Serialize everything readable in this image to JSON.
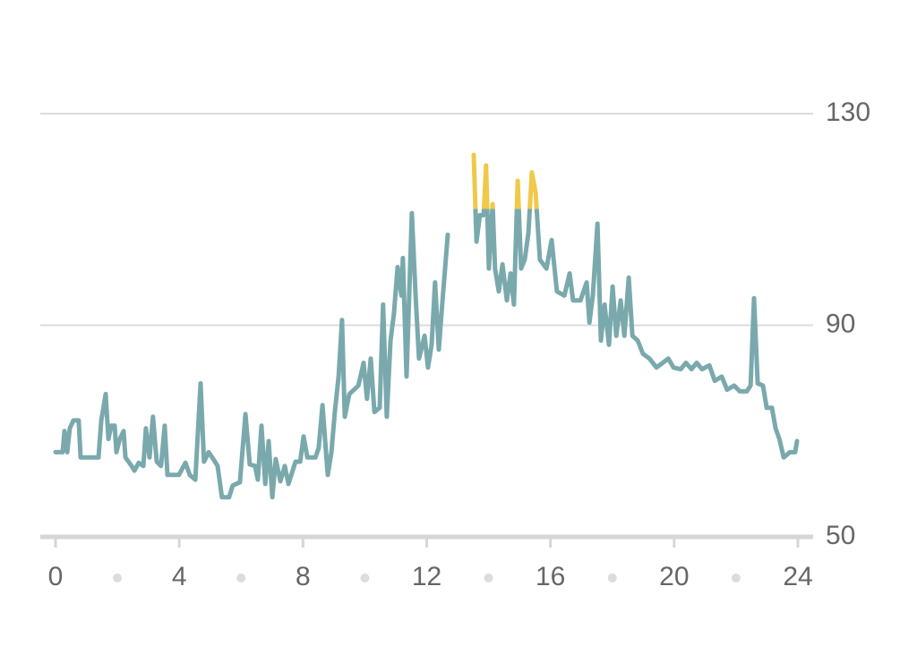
{
  "chart_data": {
    "type": "line",
    "x": [
      0,
      0.23,
      0.29,
      0.38,
      0.46,
      0.58,
      0.75,
      0.81,
      1.39,
      1.48,
      1.62,
      1.71,
      1.8,
      1.91,
      1.97,
      2.08,
      2.2,
      2.26,
      2.46,
      2.55,
      2.69,
      2.84,
      2.92,
      3.04,
      3.15,
      3.27,
      3.41,
      3.53,
      3.62,
      3.99,
      4.2,
      4.34,
      4.52,
      4.69,
      4.8,
      4.95,
      5.1,
      5.24,
      5.38,
      5.61,
      5.73,
      5.96,
      6.14,
      6.28,
      6.45,
      6.54,
      6.66,
      6.78,
      6.89,
      7.01,
      7.12,
      7.27,
      7.41,
      7.53,
      7.76,
      7.91,
      8.02,
      8.14,
      8.4,
      8.51,
      8.63,
      8.8,
      8.92,
      9.03,
      9.15,
      9.26,
      9.35,
      9.5,
      9.79,
      9.96,
      10.07,
      10.19,
      10.31,
      10.48,
      10.59,
      10.71,
      10.83,
      10.94,
      11.06,
      11.18,
      11.23,
      11.35,
      11.52,
      11.64,
      11.75,
      11.93,
      12.04,
      12.16,
      12.27,
      12.39,
      12.5,
      12.68,
      13.1,
      13.52,
      13.61,
      13.72,
      13.84,
      13.92,
      14.01,
      14.13,
      14.21,
      14.33,
      14.45,
      14.59,
      14.71,
      14.82,
      14.94,
      15.05,
      15.17,
      15.29,
      15.4,
      15.52,
      15.66,
      15.87,
      16.04,
      16.21,
      16.45,
      16.62,
      16.73,
      16.97,
      17.17,
      17.26,
      17.37,
      17.52,
      17.63,
      17.75,
      17.89,
      18.01,
      18.13,
      18.27,
      18.39,
      18.53,
      18.65,
      18.82,
      18.99,
      19.2,
      19.43,
      19.63,
      19.81,
      19.98,
      20.21,
      20.38,
      20.56,
      20.73,
      20.9,
      21.14,
      21.31,
      21.54,
      21.71,
      21.94,
      22.12,
      22.35,
      22.47,
      22.58,
      22.7,
      22.87,
      22.99,
      23.16,
      23.28,
      23.4,
      23.54,
      23.74,
      23.91,
      23.97
    ],
    "values": [
      66,
      66,
      70,
      66,
      70.5,
      72,
      72,
      65,
      65,
      72,
      77,
      68.5,
      71,
      71,
      66,
      68.5,
      70,
      65,
      63.4,
      62.5,
      64,
      63.4,
      70.5,
      65,
      72.7,
      64.2,
      63.4,
      71,
      61.7,
      61.7,
      64,
      61.7,
      60.8,
      79,
      64.2,
      66,
      64.7,
      63.4,
      57.5,
      57.5,
      59.7,
      60.3,
      73.2,
      63.7,
      63.4,
      60.8,
      71,
      60,
      68.1,
      57.5,
      64.7,
      60.5,
      63.4,
      60,
      64.2,
      64.2,
      69,
      65,
      65,
      66.8,
      74.9,
      61.7,
      66,
      73.6,
      80.3,
      91,
      72.7,
      77,
      78.6,
      82.9,
      76.1,
      83.7,
      73.6,
      74.4,
      93.9,
      72.7,
      87.1,
      92.2,
      101,
      95.6,
      102.7,
      80.3,
      111.2,
      95.6,
      83.7,
      88,
      82,
      86.3,
      98.1,
      85.4,
      93.9,
      107.1,
      null,
      122.2,
      105.8,
      110.8,
      110.8,
      120.2,
      100.7,
      112.9,
      100.7,
      96.4,
      101.5,
      94.7,
      99.8,
      93.9,
      117.3,
      100.7,
      102.4,
      107.5,
      118.9,
      115.1,
      102.4,
      100.7,
      106.1,
      96.4,
      95.6,
      99.8,
      94.7,
      94.7,
      98.1,
      90.5,
      95.6,
      109.2,
      87.1,
      93.9,
      86.3,
      97.3,
      88,
      94.7,
      88,
      99,
      88,
      87.1,
      84.6,
      83.7,
      82,
      82.9,
      83.7,
      82,
      81.7,
      82.9,
      81.7,
      82.9,
      81.7,
      82.4,
      79.5,
      80.3,
      77.8,
      78.6,
      77.5,
      77.5,
      78.6,
      95.1,
      79,
      78.6,
      74.4,
      74.4,
      70.5,
      68.5,
      65,
      66,
      66,
      68.1
    ],
    "color": "#7aa9ad",
    "highlight": {
      "above": 112,
      "color": "#f0c94a"
    },
    "xlim": [
      0,
      24
    ],
    "xticks": [
      0,
      4,
      8,
      12,
      16,
      20,
      24
    ],
    "xminorticks": [
      2,
      6,
      10,
      14,
      18,
      22
    ],
    "ylim": [
      50,
      130
    ],
    "yticks": [
      50,
      90,
      130
    ],
    "grid": true
  }
}
